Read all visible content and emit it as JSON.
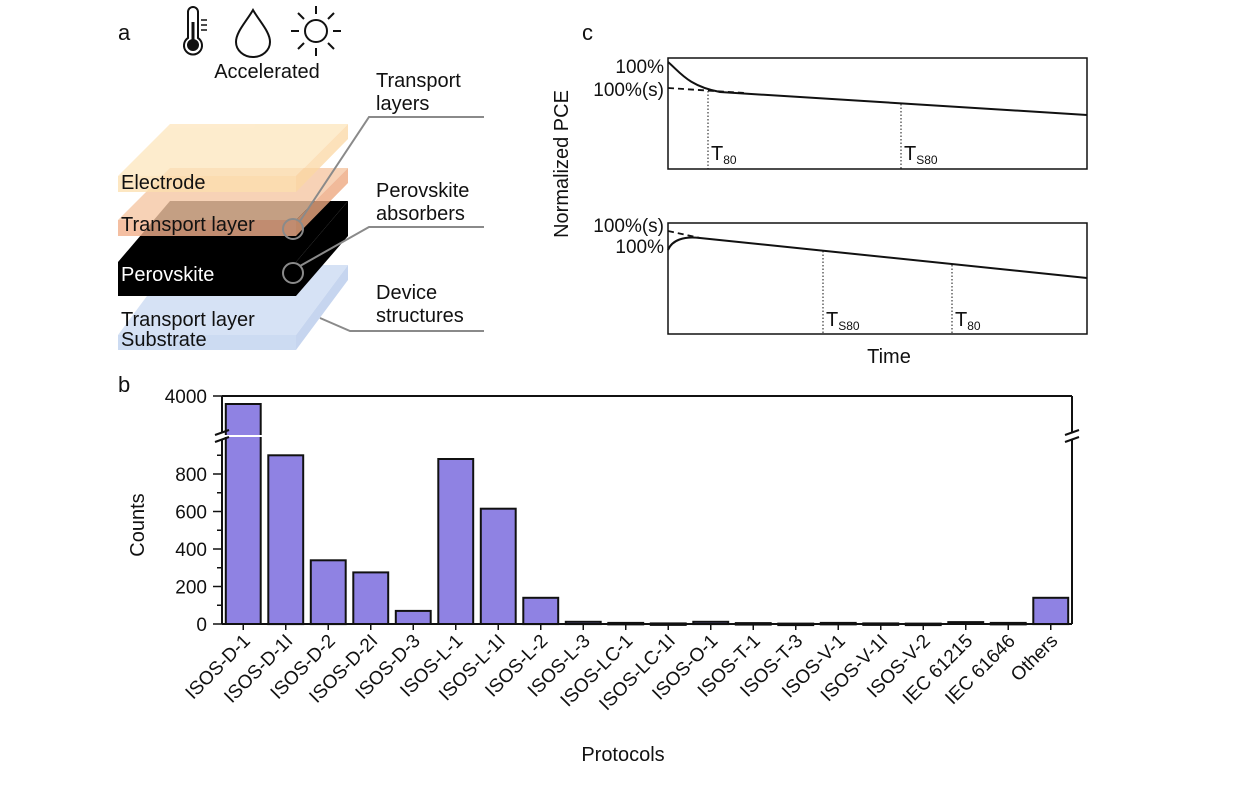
{
  "panel_labels": {
    "a": "a",
    "b": "b",
    "c": "c"
  },
  "panel_a": {
    "stress_icons": [
      "thermometer-icon",
      "water-drop-icon",
      "sun-icon"
    ],
    "accelerated_label": "Accelerated",
    "layers": {
      "electrode": "Electrode",
      "transport_top": "Transport layer",
      "perovskite": "Perovskite",
      "transport_bottom": "Transport layer",
      "substrate": "Substrate"
    },
    "callouts": {
      "transport": [
        "Transport",
        "layers"
      ],
      "perovskite": [
        "Perovskite",
        "absorbers"
      ],
      "device": [
        "Device",
        "structures"
      ]
    },
    "colors": {
      "electrode": "#fde3b4",
      "transport": "#f4b08a",
      "perovskite": "#000000",
      "substrate": "#c9d9f2"
    }
  },
  "panel_c": {
    "ylabel": "Normalized PCE",
    "xlabel": "Time",
    "top": {
      "ticks": [
        "100%",
        "100%(s)"
      ],
      "markers": [
        {
          "main": "T",
          "sub": "80"
        },
        {
          "main": "T",
          "sub": "S80"
        }
      ]
    },
    "bottom": {
      "ticks": [
        "100%(s)",
        "100%"
      ],
      "markers": [
        {
          "main": "T",
          "sub": "S80"
        },
        {
          "main": "T",
          "sub": "80"
        }
      ]
    }
  },
  "chart_data": {
    "type": "bar",
    "xlabel": "Protocols",
    "ylabel": "Counts",
    "categories": [
      "ISOS-D-1",
      "ISOS-D-1I",
      "ISOS-D-2",
      "ISOS-D-2I",
      "ISOS-D-3",
      "ISOS-L-1",
      "ISOS-L-1I",
      "ISOS-L-2",
      "ISOS-L-3",
      "ISOS-LC-1",
      "ISOS-LC-1I",
      "ISOS-O-1",
      "ISOS-T-1",
      "ISOS-T-3",
      "ISOS-V-1",
      "ISOS-V-1I",
      "ISOS-V-2",
      "IEC 61215",
      "IEC 61646",
      "Others"
    ],
    "values": [
      3400,
      900,
      340,
      275,
      70,
      880,
      615,
      140,
      12,
      6,
      3,
      12,
      5,
      2,
      6,
      3,
      2,
      10,
      6,
      140
    ],
    "y_ticks": [
      0,
      200,
      400,
      600,
      800,
      4000
    ],
    "ylim": [
      0,
      4000
    ],
    "axis_break": "between 1000 and 4000",
    "bar_color": "#8f82e3",
    "grid": false,
    "legend": "none"
  }
}
